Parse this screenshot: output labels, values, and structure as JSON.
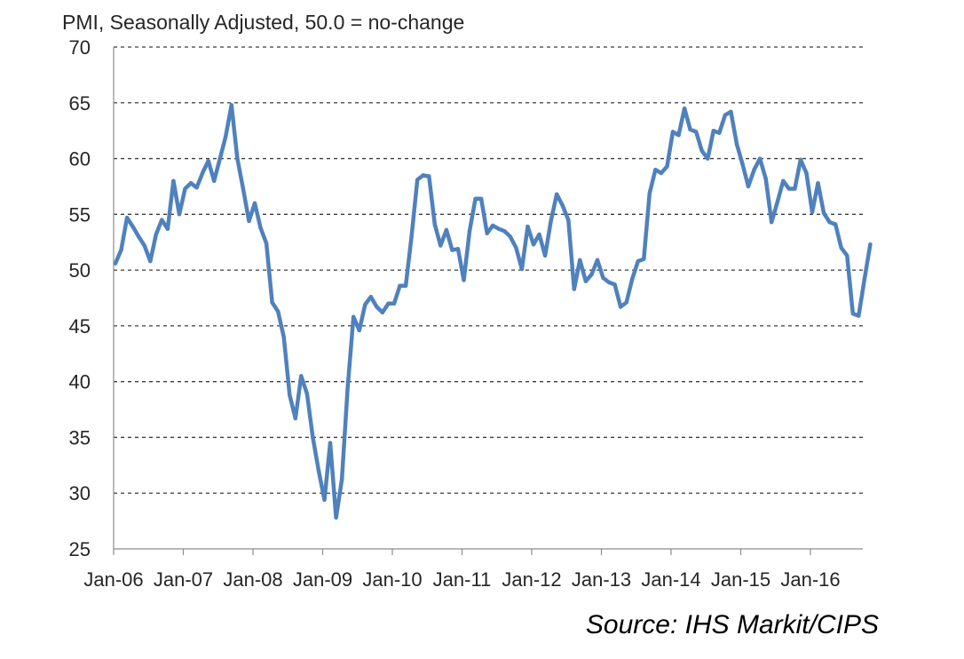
{
  "chart_data": {
    "type": "line",
    "title": "",
    "ylabel": "PMI, Seasonally Adjusted, 50.0 = no-change",
    "xlabel": "",
    "ylim": [
      25,
      70
    ],
    "yticks": [
      25,
      30,
      35,
      40,
      45,
      50,
      55,
      60,
      65,
      70
    ],
    "xticks": [
      "Jan-06",
      "Jan-07",
      "Jan-08",
      "Jan-09",
      "Jan-10",
      "Jan-11",
      "Jan-12",
      "Jan-13",
      "Jan-14",
      "Jan-15",
      "Jan-16"
    ],
    "grid": true,
    "line_color": "#4f81bd",
    "series": [
      {
        "name": "",
        "x_start": "Jan-06",
        "frequency": "monthly",
        "values": [
          50.6,
          51.8,
          54.7,
          53.9,
          53.0,
          52.2,
          50.8,
          53.2,
          54.5,
          53.7,
          58.0,
          55.0,
          57.3,
          57.8,
          57.4,
          58.7,
          59.8,
          58.0,
          60.0,
          62.0,
          64.8,
          60.0,
          57.3,
          54.4,
          56.0,
          53.8,
          52.4,
          47.1,
          46.3,
          44.0,
          38.8,
          36.7,
          40.5,
          38.9,
          35.0,
          32.0,
          29.4,
          34.5,
          27.8,
          31.2,
          39.5,
          45.8,
          44.6,
          46.9,
          47.6,
          46.7,
          46.2,
          47.0,
          47.0,
          48.6,
          48.6,
          53.0,
          58.1,
          58.5,
          58.4,
          54.1,
          52.2,
          53.6,
          51.8,
          51.9,
          49.1,
          53.5,
          56.4,
          56.4,
          53.3,
          54.0,
          53.7,
          53.5,
          53.0,
          52.0,
          50.1,
          53.9,
          52.3,
          53.2,
          51.3,
          54.4,
          56.8,
          55.8,
          54.5,
          48.3,
          50.9,
          49.0,
          49.6,
          50.9,
          49.3,
          48.9,
          48.7,
          46.7,
          47.1,
          49.2,
          50.8,
          51.0,
          56.9,
          59.0,
          58.7,
          59.3,
          62.4,
          62.1,
          64.5,
          62.6,
          62.4,
          60.7,
          60.0,
          62.5,
          62.3,
          63.9,
          64.2,
          61.3,
          59.5,
          57.5,
          59.0,
          60.0,
          58.2,
          54.3,
          56.1,
          58.0,
          57.3,
          57.3,
          59.9,
          58.7,
          55.2,
          57.8,
          55.1,
          54.3,
          54.1,
          52.0,
          51.3,
          46.1,
          45.9,
          49.2,
          52.3
        ]
      }
    ]
  },
  "source": "Source: IHS Markit/CIPS"
}
